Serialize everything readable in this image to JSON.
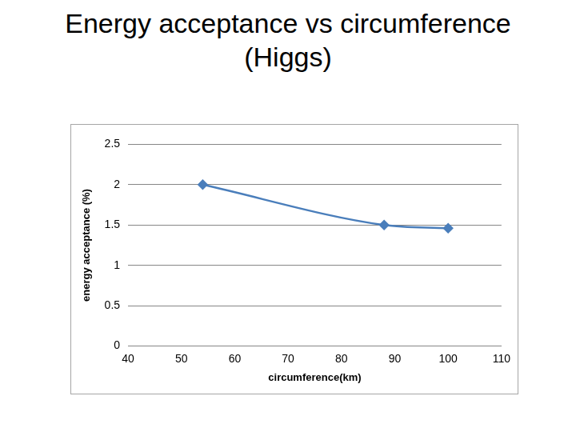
{
  "chart_data": {
    "type": "line",
    "title": "Energy acceptance vs circumference (Higgs)",
    "x_label": "circumference(km)",
    "y_label": "energy acceptance (%)",
    "x": [
      54,
      88,
      100
    ],
    "values": [
      2.0,
      1.5,
      1.46
    ],
    "color": "#4a7ebb",
    "marker": "diamond",
    "xlim": [
      40,
      110
    ],
    "xticks": [
      40,
      50,
      60,
      70,
      80,
      90,
      100,
      110
    ],
    "ylim": [
      0,
      2.5
    ],
    "yticks": [
      0,
      0.5,
      1,
      1.5,
      2,
      2.5
    ],
    "grid": true
  }
}
